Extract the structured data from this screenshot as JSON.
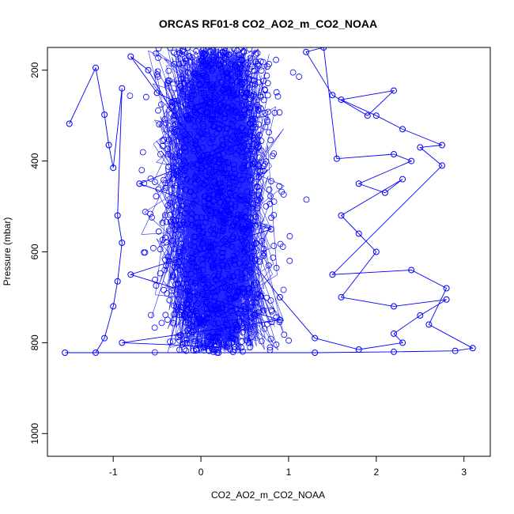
{
  "chart_data": {
    "type": "scatter",
    "title": "ORCAS RF01-8 CO2_AO2_m_CO2_NOAA",
    "xlabel": "CO2_AO2_m_CO2_NOAA",
    "ylabel": "Pressure (mbar)",
    "xlim": [
      -1.75,
      3.3
    ],
    "ylim": [
      1050,
      150
    ],
    "y_reversed": true,
    "x_ticks": [
      -1,
      0,
      1,
      2,
      3
    ],
    "y_ticks": [
      200,
      400,
      600,
      800,
      1000
    ],
    "grid": false,
    "legend": "none",
    "marker": "open-circle",
    "connect_points": true,
    "series_color": "#0000ff",
    "series": [
      {
        "points": [
          [
            -1.5,
            318
          ],
          [
            -1.2,
            195
          ],
          [
            -1.1,
            298
          ],
          [
            -1.05,
            365
          ],
          [
            -1.0,
            415
          ],
          [
            -0.9,
            240
          ],
          [
            -0.95,
            520
          ],
          [
            -0.9,
            580
          ],
          [
            -0.95,
            665
          ],
          [
            -1.0,
            720
          ],
          [
            -1.1,
            790
          ],
          [
            -1.2,
            822
          ],
          [
            -1.55,
            822
          ],
          [
            0.2,
            822
          ],
          [
            1.3,
            822
          ],
          [
            2.2,
            820
          ],
          [
            2.9,
            818
          ],
          [
            3.1,
            812
          ],
          [
            2.6,
            760
          ],
          [
            2.8,
            680
          ],
          [
            2.4,
            640
          ],
          [
            1.5,
            650
          ],
          [
            2.75,
            410
          ],
          [
            2.5,
            370
          ],
          [
            2.75,
            365
          ],
          [
            2.3,
            330
          ],
          [
            2.0,
            300
          ],
          [
            1.6,
            265
          ],
          [
            2.2,
            245
          ],
          [
            1.9,
            300
          ],
          [
            1.5,
            255
          ],
          [
            1.2,
            160
          ],
          [
            1.4,
            150
          ],
          [
            1.55,
            395
          ],
          [
            2.2,
            385
          ],
          [
            2.4,
            400
          ],
          [
            1.8,
            450
          ],
          [
            2.1,
            470
          ],
          [
            2.3,
            440
          ],
          [
            1.6,
            520
          ],
          [
            1.8,
            560
          ],
          [
            2.0,
            600
          ],
          [
            1.6,
            700
          ],
          [
            2.2,
            720
          ],
          [
            2.8,
            705
          ],
          [
            2.5,
            740
          ],
          [
            2.2,
            780
          ],
          [
            2.3,
            800
          ],
          [
            1.8,
            815
          ],
          [
            1.3,
            790
          ],
          [
            0.9,
            700
          ],
          [
            0.5,
            600
          ],
          [
            0.3,
            500
          ],
          [
            0.1,
            400
          ],
          [
            -0.3,
            300
          ],
          [
            -0.6,
            200
          ],
          [
            -0.8,
            170
          ],
          [
            -0.5,
            250
          ],
          [
            0.6,
            350
          ],
          [
            -0.7,
            450
          ],
          [
            0.8,
            550
          ],
          [
            -0.8,
            650
          ],
          [
            0.9,
            750
          ],
          [
            -0.9,
            800
          ],
          [
            0.3,
            810
          ]
        ]
      }
    ]
  }
}
